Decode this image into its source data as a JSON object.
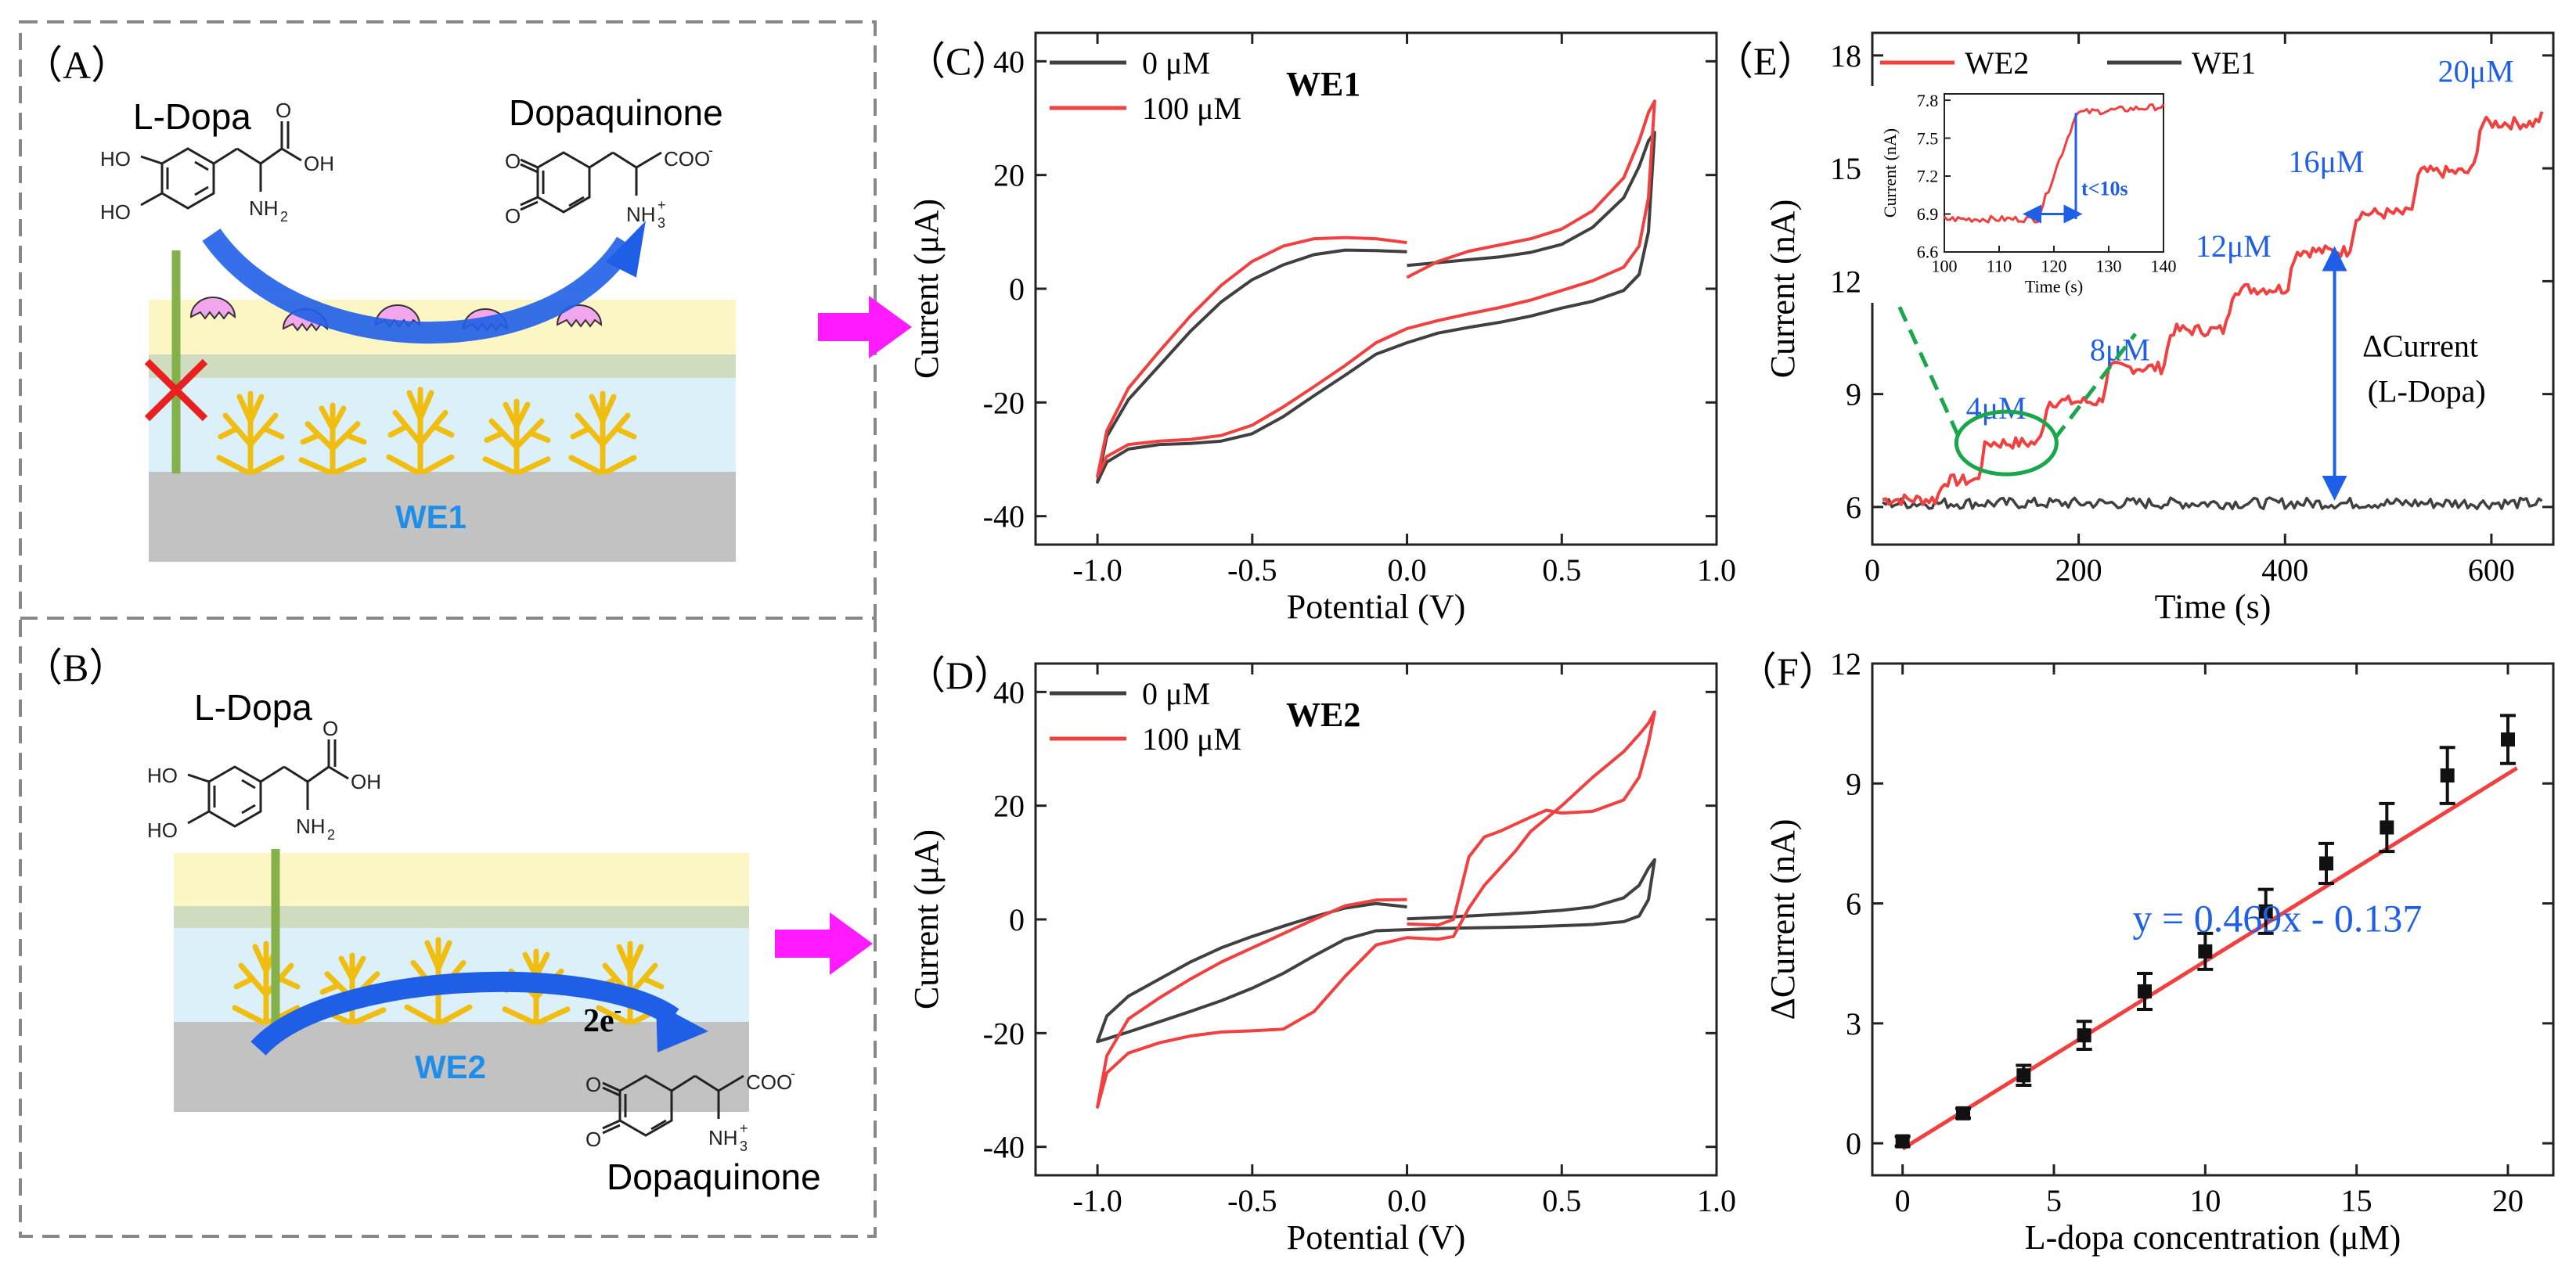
{
  "colors": {
    "red": "#f04040",
    "dark": "#404040",
    "blue": "#1f5fe8",
    "magenta": "#ff1aff",
    "green": "#1aa64a",
    "yellow_layer": "#fbf6c4",
    "cyan_layer": "#dbf0f8",
    "electrode": "#c2c2c2",
    "enzyme": "#f2a6ec",
    "dendrite": "#f0be10",
    "arrow_green": "#84b14a",
    "cross": "#e82020",
    "dashed_orange": "#f5a45c"
  },
  "panels": {
    "a": {
      "label": "（A）",
      "reactant": "L-Dopa",
      "product": "Dopaquinone",
      "electrode": "WE1"
    },
    "b": {
      "label": "（B）",
      "reactant": "L-Dopa",
      "product": "Dopaquinone",
      "electrode": "WE2",
      "electrons": "2e",
      "electron_sup": "-"
    }
  },
  "chem": {
    "ho": "HO",
    "oh": "OH",
    "o": "O",
    "nh2": "NH",
    "nh2_sub": "2",
    "nh3": "NH",
    "nh3_sub": "3",
    "nh3_sup": "+",
    "coo": "COO",
    "coo_sup": "-"
  },
  "chart_data": [
    {
      "id": "C",
      "type": "line",
      "label": "（C）",
      "title": "WE1",
      "xlabel": "Potential (V)",
      "ylabel": "Current (μA)",
      "xlim": [
        -1.2,
        1.0
      ],
      "ylim": [
        -45,
        45
      ],
      "xticks": [
        -1.0,
        -0.5,
        0.0,
        0.5,
        1.0
      ],
      "xtick_labels": [
        "-1.0",
        "-0.5",
        "0.0",
        "0.5",
        "1.0"
      ],
      "yticks": [
        -40,
        -20,
        0,
        20,
        40
      ],
      "ytick_labels": [
        "-40",
        "-20",
        "0",
        "20",
        "40"
      ],
      "legend": [
        "0 μM",
        "100 μM"
      ],
      "series": [
        {
          "name": "0 μM",
          "color": "dark",
          "points": [
            [
              0.0,
              6.5
            ],
            [
              -0.1,
              6.7
            ],
            [
              -0.2,
              6.8
            ],
            [
              -0.3,
              6.0
            ],
            [
              -0.4,
              4.2
            ],
            [
              -0.5,
              1.6
            ],
            [
              -0.6,
              -2.3
            ],
            [
              -0.7,
              -7.5
            ],
            [
              -0.8,
              -13.5
            ],
            [
              -0.9,
              -19.5
            ],
            [
              -0.97,
              -26
            ],
            [
              -1.0,
              -34
            ],
            [
              -0.97,
              -30.5
            ],
            [
              -0.9,
              -28.2
            ],
            [
              -0.8,
              -27.4
            ],
            [
              -0.7,
              -27.2
            ],
            [
              -0.6,
              -26.8
            ],
            [
              -0.5,
              -25.5
            ],
            [
              -0.4,
              -22.5
            ],
            [
              -0.3,
              -18.8
            ],
            [
              -0.2,
              -15.2
            ],
            [
              -0.1,
              -11.5
            ],
            [
              0.0,
              -9.5
            ],
            [
              0.1,
              -7.8
            ],
            [
              0.2,
              -6.8
            ],
            [
              0.3,
              -5.9
            ],
            [
              0.4,
              -4.8
            ],
            [
              0.5,
              -3.4
            ],
            [
              0.6,
              -2.2
            ],
            [
              0.7,
              -0.3
            ],
            [
              0.75,
              2.5
            ],
            [
              0.78,
              10
            ],
            [
              0.8,
              27.5
            ],
            [
              0.78,
              26
            ],
            [
              0.75,
              21.5
            ],
            [
              0.7,
              16
            ],
            [
              0.6,
              10.8
            ],
            [
              0.5,
              7.8
            ],
            [
              0.4,
              6.4
            ],
            [
              0.3,
              5.6
            ],
            [
              0.2,
              5.1
            ],
            [
              0.1,
              4.6
            ],
            [
              0.0,
              4.1
            ]
          ]
        },
        {
          "name": "100 μM",
          "color": "red",
          "points": [
            [
              0.0,
              8.1
            ],
            [
              -0.1,
              8.8
            ],
            [
              -0.2,
              9.0
            ],
            [
              -0.3,
              8.8
            ],
            [
              -0.4,
              7.5
            ],
            [
              -0.5,
              4.8
            ],
            [
              -0.6,
              0.6
            ],
            [
              -0.7,
              -4.8
            ],
            [
              -0.8,
              -11
            ],
            [
              -0.9,
              -17.5
            ],
            [
              -0.97,
              -25
            ],
            [
              -1.0,
              -33
            ],
            [
              -0.97,
              -29.5
            ],
            [
              -0.9,
              -27.4
            ],
            [
              -0.8,
              -26.8
            ],
            [
              -0.7,
              -26.5
            ],
            [
              -0.6,
              -25.8
            ],
            [
              -0.5,
              -24
            ],
            [
              -0.4,
              -20.8
            ],
            [
              -0.3,
              -17.2
            ],
            [
              -0.2,
              -13.5
            ],
            [
              -0.1,
              -9.5
            ],
            [
              0.0,
              -7.0
            ],
            [
              0.1,
              -5.6
            ],
            [
              0.2,
              -4.4
            ],
            [
              0.3,
              -3.3
            ],
            [
              0.4,
              -2.0
            ],
            [
              0.5,
              -0.3
            ],
            [
              0.6,
              1.4
            ],
            [
              0.7,
              3.8
            ],
            [
              0.75,
              7.5
            ],
            [
              0.78,
              16
            ],
            [
              0.8,
              33
            ],
            [
              0.78,
              31
            ],
            [
              0.75,
              26
            ],
            [
              0.7,
              19.5
            ],
            [
              0.6,
              13.7
            ],
            [
              0.5,
              10.5
            ],
            [
              0.4,
              8.8
            ],
            [
              0.3,
              7.7
            ],
            [
              0.2,
              6.6
            ],
            [
              0.1,
              4.8
            ],
            [
              0.0,
              2.0
            ]
          ]
        }
      ]
    },
    {
      "id": "D",
      "type": "line",
      "label": "（D）",
      "title": "WE2",
      "xlabel": "Potential (V)",
      "ylabel": "Current (μA)",
      "xlim": [
        -1.2,
        1.0
      ],
      "ylim": [
        -45,
        45
      ],
      "xticks": [
        -1.0,
        -0.5,
        0.0,
        0.5,
        1.0
      ],
      "xtick_labels": [
        "-1.0",
        "-0.5",
        "0.0",
        "0.5",
        "1.0"
      ],
      "yticks": [
        -40,
        -20,
        0,
        20,
        40
      ],
      "ytick_labels": [
        "-40",
        "-20",
        "0",
        "20",
        "40"
      ],
      "legend": [
        "0 μM",
        "100 μM"
      ],
      "series": [
        {
          "name": "0 μM",
          "color": "dark",
          "points": [
            [
              0.0,
              2.2
            ],
            [
              -0.1,
              2.8
            ],
            [
              -0.2,
              2.0
            ],
            [
              -0.3,
              0.5
            ],
            [
              -0.4,
              -1.2
            ],
            [
              -0.5,
              -3.0
            ],
            [
              -0.6,
              -5.0
            ],
            [
              -0.7,
              -7.5
            ],
            [
              -0.8,
              -10.5
            ],
            [
              -0.9,
              -13.5
            ],
            [
              -0.97,
              -17
            ],
            [
              -1.0,
              -21.5
            ],
            [
              -0.97,
              -21
            ],
            [
              -0.9,
              -19.8
            ],
            [
              -0.8,
              -18
            ],
            [
              -0.7,
              -16.2
            ],
            [
              -0.6,
              -14.3
            ],
            [
              -0.5,
              -12.1
            ],
            [
              -0.4,
              -9.5
            ],
            [
              -0.3,
              -6.4
            ],
            [
              -0.2,
              -3.5
            ],
            [
              -0.1,
              -2.0
            ],
            [
              0.0,
              -1.8
            ],
            [
              0.1,
              -1.6
            ],
            [
              0.2,
              -1.5
            ],
            [
              0.3,
              -1.4
            ],
            [
              0.4,
              -1.3
            ],
            [
              0.5,
              -1.1
            ],
            [
              0.6,
              -0.9
            ],
            [
              0.7,
              -0.4
            ],
            [
              0.75,
              0.6
            ],
            [
              0.78,
              3.5
            ],
            [
              0.8,
              10.5
            ],
            [
              0.78,
              9
            ],
            [
              0.75,
              6
            ],
            [
              0.7,
              3.8
            ],
            [
              0.6,
              2.2
            ],
            [
              0.5,
              1.6
            ],
            [
              0.4,
              1.2
            ],
            [
              0.3,
              0.9
            ],
            [
              0.2,
              0.6
            ],
            [
              0.1,
              0.3
            ],
            [
              0.0,
              0.1
            ]
          ]
        },
        {
          "name": "100 μM",
          "color": "red",
          "points": [
            [
              0.0,
              3.5
            ],
            [
              -0.1,
              3.4
            ],
            [
              -0.2,
              2.4
            ],
            [
              -0.3,
              0.0
            ],
            [
              -0.4,
              -2.5
            ],
            [
              -0.5,
              -5.0
            ],
            [
              -0.6,
              -7.5
            ],
            [
              -0.7,
              -10.5
            ],
            [
              -0.8,
              -13.8
            ],
            [
              -0.9,
              -17.5
            ],
            [
              -0.97,
              -24
            ],
            [
              -1.0,
              -33
            ],
            [
              -0.97,
              -27
            ],
            [
              -0.9,
              -23.5
            ],
            [
              -0.8,
              -21.7
            ],
            [
              -0.7,
              -20.5
            ],
            [
              -0.6,
              -19.8
            ],
            [
              -0.5,
              -19.6
            ],
            [
              -0.4,
              -19.3
            ],
            [
              -0.3,
              -16.2
            ],
            [
              -0.2,
              -10
            ],
            [
              -0.1,
              -4.5
            ],
            [
              0.0,
              -3.2
            ],
            [
              0.1,
              -3.5
            ],
            [
              0.15,
              -3.0
            ],
            [
              0.2,
              2.0
            ],
            [
              0.25,
              6.0
            ],
            [
              0.3,
              9.0
            ],
            [
              0.35,
              12
            ],
            [
              0.4,
              15.5
            ],
            [
              0.5,
              20
            ],
            [
              0.6,
              25
            ],
            [
              0.7,
              29.5
            ],
            [
              0.75,
              32.5
            ],
            [
              0.78,
              34.5
            ],
            [
              0.8,
              36.5
            ],
            [
              0.78,
              31
            ],
            [
              0.75,
              25
            ],
            [
              0.7,
              21
            ],
            [
              0.6,
              19
            ],
            [
              0.5,
              18.7
            ],
            [
              0.45,
              19.2
            ],
            [
              0.4,
              18
            ],
            [
              0.3,
              15.5
            ],
            [
              0.25,
              14.5
            ],
            [
              0.2,
              11
            ],
            [
              0.15,
              0
            ],
            [
              0.1,
              -1.0
            ],
            [
              0.0,
              -0.8
            ]
          ]
        }
      ]
    },
    {
      "id": "E",
      "type": "line",
      "label": "（E）",
      "xlabel": "Time (s)",
      "ylabel": "Current (nA)",
      "xlim": [
        0,
        660
      ],
      "ylim": [
        5.0,
        18.6
      ],
      "xticks": [
        0,
        200,
        400,
        600
      ],
      "xtick_labels": [
        "0",
        "200",
        "400",
        "600"
      ],
      "yticks": [
        6,
        9,
        12,
        15,
        18
      ],
      "ytick_labels": [
        "6",
        "9",
        "12",
        "15",
        "18"
      ],
      "legend": [
        "WE2",
        "WE1"
      ],
      "steps": {
        "times": [
          0,
          70,
          110,
          170,
          230,
          290,
          350,
          410,
          470,
          530,
          590,
          650
        ],
        "levels": [
          6.2,
          6.7,
          7.7,
          8.8,
          9.7,
          10.7,
          11.8,
          12.8,
          13.8,
          14.9,
          16.2,
          16.4
        ]
      },
      "we1_level": 6.1,
      "annotations": [
        "4μM",
        "8μM",
        "12μM",
        "16μM",
        "20μM"
      ],
      "delta_label_1": "ΔCurrent",
      "delta_label_2": "(L-Dopa)",
      "inset": {
        "xlabel": "Time (s)",
        "ylabel": "Current (nA)",
        "xlim": [
          100,
          140
        ],
        "ylim": [
          6.6,
          7.85
        ],
        "xticks": [
          100,
          110,
          120,
          130,
          140
        ],
        "xtick_labels": [
          "100",
          "110",
          "120",
          "130",
          "140"
        ],
        "yticks": [
          6.6,
          6.9,
          7.2,
          7.5,
          7.8
        ],
        "ytick_labels": [
          "6.6",
          "6.9",
          "7.2",
          "7.5",
          "7.8"
        ],
        "note": "t<10s"
      }
    },
    {
      "id": "F",
      "type": "scatter",
      "label": "（F）",
      "xlabel": "L-dopa concentration (μM)",
      "ylabel": "ΔCurrent (nA)",
      "xlim": [
        -1,
        21.5
      ],
      "ylim": [
        -0.8,
        12
      ],
      "xticks": [
        0,
        5,
        10,
        15,
        20
      ],
      "xtick_labels": [
        "0",
        "5",
        "10",
        "15",
        "20"
      ],
      "yticks": [
        0,
        3,
        6,
        9,
        12
      ],
      "ytick_labels": [
        "0",
        "3",
        "6",
        "9",
        "12"
      ],
      "x": [
        0,
        2,
        4,
        6,
        8,
        10,
        12,
        14,
        16,
        18,
        20
      ],
      "values": [
        0.05,
        0.75,
        1.7,
        2.7,
        3.8,
        4.8,
        5.8,
        7.0,
        7.9,
        9.2,
        10.1
      ],
      "errors": [
        0.12,
        0.12,
        0.25,
        0.35,
        0.45,
        0.45,
        0.55,
        0.5,
        0.6,
        0.7,
        0.6
      ],
      "fit": {
        "slope": 0.469,
        "intercept": -0.137,
        "label": "y = 0.469x - 0.137"
      }
    }
  ]
}
